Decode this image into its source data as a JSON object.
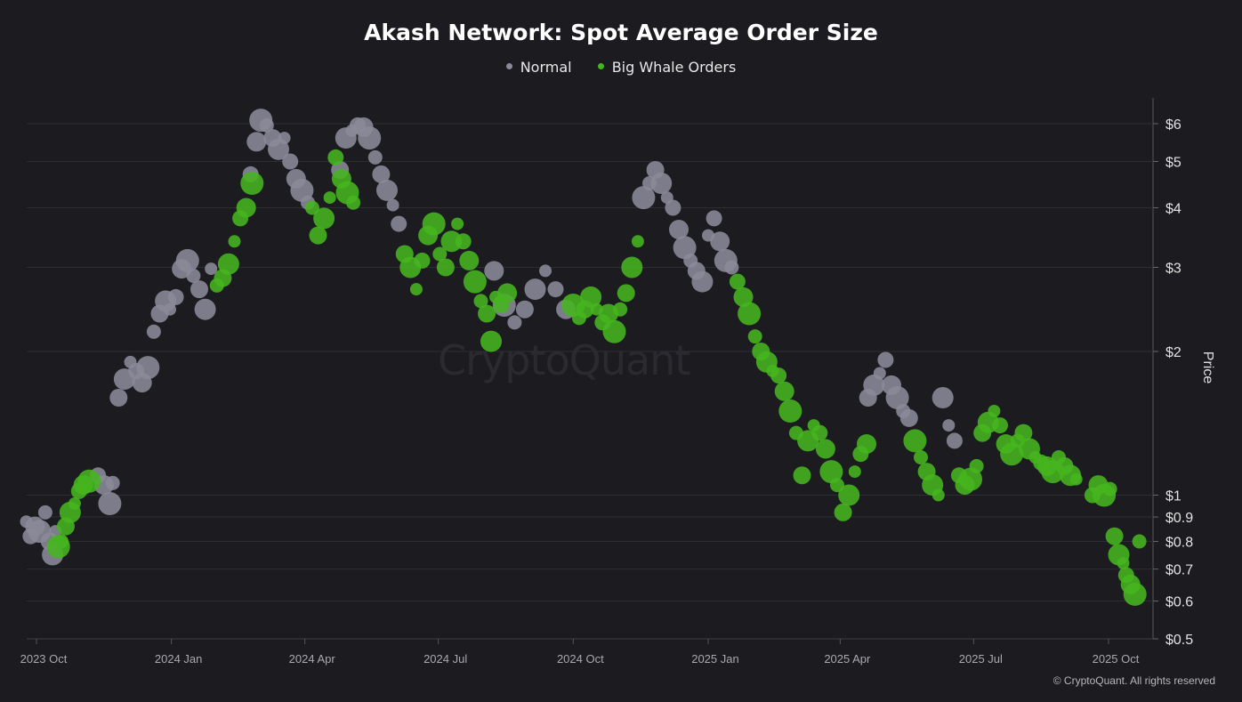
{
  "title": "Akash Network: Spot Average Order Size",
  "watermark": "CryptoQuant",
  "copyright": "© CryptoQuant. All rights reserved",
  "legend": [
    {
      "label": "Normal",
      "color": "#8b8a98"
    },
    {
      "label": "Big Whale Orders",
      "color": "#45b51f"
    }
  ],
  "chart_data": {
    "type": "scatter",
    "title": "Akash Network: Spot Average Order Size",
    "ylabel": "Price",
    "yscale": "log",
    "ylim": [
      0.5,
      6.6
    ],
    "y_ticks": [
      {
        "value": 0.5,
        "label": "$0.5"
      },
      {
        "value": 0.6,
        "label": "$0.6"
      },
      {
        "value": 0.7,
        "label": "$0.7"
      },
      {
        "value": 0.8,
        "label": "$0.8"
      },
      {
        "value": 0.9,
        "label": "$0.9"
      },
      {
        "value": 1,
        "label": "$1"
      },
      {
        "value": 2,
        "label": "$2"
      },
      {
        "value": 3,
        "label": "$3"
      },
      {
        "value": 4,
        "label": "$4"
      },
      {
        "value": 5,
        "label": "$5"
      },
      {
        "value": 6,
        "label": "$6"
      }
    ],
    "xlim": [
      "2023-09-20",
      "2025-10-25"
    ],
    "x_ticks": [
      {
        "date": "2023-10-01",
        "label": "2023 Oct"
      },
      {
        "date": "2024-01-01",
        "label": "2024 Jan"
      },
      {
        "date": "2024-04-01",
        "label": "2024 Apr"
      },
      {
        "date": "2024-07-01",
        "label": "2024 Jul"
      },
      {
        "date": "2024-10-01",
        "label": "2024 Oct"
      },
      {
        "date": "2025-01-01",
        "label": "2025 Jan"
      },
      {
        "date": "2025-04-01",
        "label": "2025 Apr"
      },
      {
        "date": "2025-07-01",
        "label": "2025 Jul"
      },
      {
        "date": "2025-10-01",
        "label": "2025 Oct"
      }
    ],
    "grid": true,
    "legend_position": "top-center",
    "series": [
      {
        "name": "Normal",
        "color": "#8b8a98",
        "points": [
          [
            "2023-09-24",
            0.88
          ],
          [
            "2023-09-27",
            0.82
          ],
          [
            "2023-09-30",
            0.86
          ],
          [
            "2023-10-03",
            0.84
          ],
          [
            "2023-10-07",
            0.92
          ],
          [
            "2023-10-10",
            0.8
          ],
          [
            "2023-10-12",
            0.75
          ],
          [
            "2023-10-14",
            0.84
          ],
          [
            "2023-11-12",
            1.1
          ],
          [
            "2023-11-16",
            1.05
          ],
          [
            "2023-11-20",
            0.96
          ],
          [
            "2023-11-22",
            1.06
          ],
          [
            "2023-11-26",
            1.6
          ],
          [
            "2023-11-30",
            1.75
          ],
          [
            "2023-12-04",
            1.9
          ],
          [
            "2023-12-08",
            1.82
          ],
          [
            "2023-12-12",
            1.72
          ],
          [
            "2023-12-16",
            1.85
          ],
          [
            "2023-12-20",
            2.2
          ],
          [
            "2023-12-24",
            2.4
          ],
          [
            "2023-12-28",
            2.55
          ],
          [
            "2023-12-31",
            2.45
          ],
          [
            "2024-01-04",
            2.6
          ],
          [
            "2024-01-08",
            2.98
          ],
          [
            "2024-01-12",
            3.1
          ],
          [
            "2024-01-16",
            2.88
          ],
          [
            "2024-01-20",
            2.7
          ],
          [
            "2024-01-24",
            2.45
          ],
          [
            "2024-01-28",
            2.98
          ],
          [
            "2024-02-24",
            4.7
          ],
          [
            "2024-02-28",
            5.5
          ],
          [
            "2024-03-02",
            6.1
          ],
          [
            "2024-03-06",
            5.95
          ],
          [
            "2024-03-10",
            5.6
          ],
          [
            "2024-03-14",
            5.3
          ],
          [
            "2024-03-18",
            5.6
          ],
          [
            "2024-03-22",
            5.0
          ],
          [
            "2024-03-26",
            4.6
          ],
          [
            "2024-03-30",
            4.35
          ],
          [
            "2024-04-03",
            4.1
          ],
          [
            "2024-04-25",
            4.8
          ],
          [
            "2024-04-29",
            5.6
          ],
          [
            "2024-05-03",
            5.8
          ],
          [
            "2024-05-07",
            5.95
          ],
          [
            "2024-05-11",
            5.9
          ],
          [
            "2024-05-15",
            5.6
          ],
          [
            "2024-05-19",
            5.1
          ],
          [
            "2024-05-23",
            4.7
          ],
          [
            "2024-05-27",
            4.35
          ],
          [
            "2024-05-31",
            4.05
          ],
          [
            "2024-06-04",
            3.7
          ],
          [
            "2024-08-08",
            2.95
          ],
          [
            "2024-08-15",
            2.5
          ],
          [
            "2024-08-22",
            2.3
          ],
          [
            "2024-08-29",
            2.45
          ],
          [
            "2024-09-05",
            2.7
          ],
          [
            "2024-09-12",
            2.95
          ],
          [
            "2024-09-19",
            2.7
          ],
          [
            "2024-09-26",
            2.45
          ],
          [
            "2024-11-18",
            4.2
          ],
          [
            "2024-11-22",
            4.5
          ],
          [
            "2024-11-26",
            4.8
          ],
          [
            "2024-11-30",
            4.5
          ],
          [
            "2024-12-04",
            4.2
          ],
          [
            "2024-12-08",
            4.0
          ],
          [
            "2024-12-12",
            3.6
          ],
          [
            "2024-12-16",
            3.3
          ],
          [
            "2024-12-20",
            3.1
          ],
          [
            "2024-12-24",
            2.95
          ],
          [
            "2024-12-28",
            2.8
          ],
          [
            "2025-01-01",
            3.5
          ],
          [
            "2025-01-05",
            3.8
          ],
          [
            "2025-01-09",
            3.4
          ],
          [
            "2025-01-13",
            3.1
          ],
          [
            "2025-01-17",
            3.0
          ],
          [
            "2025-04-20",
            1.6
          ],
          [
            "2025-04-24",
            1.7
          ],
          [
            "2025-04-28",
            1.8
          ],
          [
            "2025-05-02",
            1.92
          ],
          [
            "2025-05-06",
            1.7
          ],
          [
            "2025-05-10",
            1.6
          ],
          [
            "2025-05-14",
            1.5
          ],
          [
            "2025-05-18",
            1.45
          ],
          [
            "2025-06-10",
            1.6
          ],
          [
            "2025-06-14",
            1.4
          ],
          [
            "2025-06-18",
            1.3
          ]
        ]
      },
      {
        "name": "Big Whale Orders",
        "color": "#45b51f",
        "points": [
          [
            "2023-10-16",
            0.78
          ],
          [
            "2023-10-18",
            0.8
          ],
          [
            "2023-10-21",
            0.86
          ],
          [
            "2023-10-24",
            0.92
          ],
          [
            "2023-10-27",
            0.96
          ],
          [
            "2023-10-30",
            1.02
          ],
          [
            "2023-11-02",
            1.05
          ],
          [
            "2023-11-06",
            1.07
          ],
          [
            "2024-02-01",
            2.75
          ],
          [
            "2024-02-05",
            2.85
          ],
          [
            "2024-02-09",
            3.05
          ],
          [
            "2024-02-13",
            3.4
          ],
          [
            "2024-02-17",
            3.8
          ],
          [
            "2024-02-21",
            4.0
          ],
          [
            "2024-02-25",
            4.5
          ],
          [
            "2024-04-06",
            4.0
          ],
          [
            "2024-04-10",
            3.5
          ],
          [
            "2024-04-14",
            3.8
          ],
          [
            "2024-04-18",
            4.2
          ],
          [
            "2024-04-22",
            5.1
          ],
          [
            "2024-04-26",
            4.6
          ],
          [
            "2024-04-30",
            4.3
          ],
          [
            "2024-05-04",
            4.1
          ],
          [
            "2024-06-08",
            3.2
          ],
          [
            "2024-06-12",
            3.0
          ],
          [
            "2024-06-16",
            2.7
          ],
          [
            "2024-06-20",
            3.1
          ],
          [
            "2024-06-24",
            3.5
          ],
          [
            "2024-06-28",
            3.7
          ],
          [
            "2024-07-02",
            3.2
          ],
          [
            "2024-07-06",
            3.0
          ],
          [
            "2024-07-10",
            3.4
          ],
          [
            "2024-07-14",
            3.7
          ],
          [
            "2024-07-18",
            3.4
          ],
          [
            "2024-07-22",
            3.1
          ],
          [
            "2024-07-26",
            2.8
          ],
          [
            "2024-07-30",
            2.55
          ],
          [
            "2024-08-03",
            2.4
          ],
          [
            "2024-08-06",
            2.1
          ],
          [
            "2024-08-09",
            2.6
          ],
          [
            "2024-08-13",
            2.5
          ],
          [
            "2024-08-17",
            2.65
          ],
          [
            "2024-10-01",
            2.5
          ],
          [
            "2024-10-05",
            2.35
          ],
          [
            "2024-10-09",
            2.45
          ],
          [
            "2024-10-13",
            2.6
          ],
          [
            "2024-10-17",
            2.45
          ],
          [
            "2024-10-21",
            2.3
          ],
          [
            "2024-10-25",
            2.4
          ],
          [
            "2024-10-29",
            2.2
          ],
          [
            "2024-11-02",
            2.45
          ],
          [
            "2024-11-06",
            2.65
          ],
          [
            "2024-11-10",
            3.0
          ],
          [
            "2024-11-14",
            3.4
          ],
          [
            "2025-01-21",
            2.8
          ],
          [
            "2025-01-25",
            2.6
          ],
          [
            "2025-01-29",
            2.4
          ],
          [
            "2025-02-02",
            2.15
          ],
          [
            "2025-02-06",
            2.0
          ],
          [
            "2025-02-10",
            1.9
          ],
          [
            "2025-02-14",
            1.82
          ],
          [
            "2025-02-18",
            1.78
          ],
          [
            "2025-02-22",
            1.65
          ],
          [
            "2025-02-26",
            1.5
          ],
          [
            "2025-03-02",
            1.35
          ],
          [
            "2025-03-06",
            1.1
          ],
          [
            "2025-03-10",
            1.3
          ],
          [
            "2025-03-14",
            1.4
          ],
          [
            "2025-03-18",
            1.35
          ],
          [
            "2025-03-22",
            1.25
          ],
          [
            "2025-03-26",
            1.12
          ],
          [
            "2025-03-30",
            1.05
          ],
          [
            "2025-04-03",
            0.92
          ],
          [
            "2025-04-07",
            1.0
          ],
          [
            "2025-04-11",
            1.12
          ],
          [
            "2025-04-15",
            1.22
          ],
          [
            "2025-04-19",
            1.28
          ],
          [
            "2025-05-22",
            1.3
          ],
          [
            "2025-05-26",
            1.2
          ],
          [
            "2025-05-30",
            1.12
          ],
          [
            "2025-06-03",
            1.05
          ],
          [
            "2025-06-07",
            1.0
          ],
          [
            "2025-06-21",
            1.1
          ],
          [
            "2025-06-25",
            1.05
          ],
          [
            "2025-06-29",
            1.08
          ],
          [
            "2025-07-03",
            1.15
          ],
          [
            "2025-07-07",
            1.35
          ],
          [
            "2025-07-11",
            1.42
          ],
          [
            "2025-07-15",
            1.5
          ],
          [
            "2025-07-19",
            1.4
          ],
          [
            "2025-07-23",
            1.28
          ],
          [
            "2025-07-27",
            1.22
          ],
          [
            "2025-07-31",
            1.3
          ],
          [
            "2025-08-04",
            1.35
          ],
          [
            "2025-08-08",
            1.25
          ],
          [
            "2025-08-12",
            1.2
          ],
          [
            "2025-08-16",
            1.17
          ],
          [
            "2025-08-20",
            1.15
          ],
          [
            "2025-08-24",
            1.12
          ],
          [
            "2025-08-28",
            1.2
          ],
          [
            "2025-09-01",
            1.15
          ],
          [
            "2025-09-05",
            1.1
          ],
          [
            "2025-09-09",
            1.08
          ],
          [
            "2025-09-20",
            1.0
          ],
          [
            "2025-09-24",
            1.05
          ],
          [
            "2025-09-28",
            1.0
          ],
          [
            "2025-10-02",
            1.03
          ],
          [
            "2025-10-05",
            0.82
          ],
          [
            "2025-10-08",
            0.75
          ],
          [
            "2025-10-11",
            0.72
          ],
          [
            "2025-10-13",
            0.68
          ],
          [
            "2025-10-16",
            0.65
          ],
          [
            "2025-10-19",
            0.62
          ],
          [
            "2025-10-22",
            0.8
          ]
        ]
      }
    ]
  }
}
